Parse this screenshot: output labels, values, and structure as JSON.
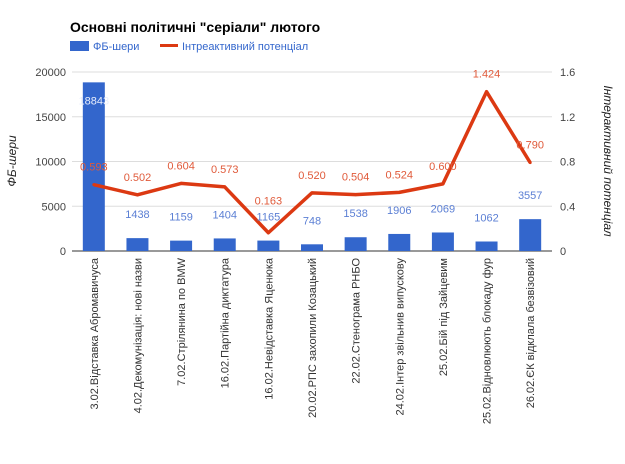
{
  "chart_data": {
    "type": "bar+line",
    "title": "Основні політичні \"серіали\" лютого",
    "categories": [
      "3.02.Відставка Абромавичуса",
      "4.02.Декомунізація: нові назви",
      "7.02.Стрілянина по BMW",
      "16.02.Партійна диктатура",
      "16.02.Невідставка Яценюка",
      "20.02.РПС захопили Козацький",
      "22.02.Стенограма РНБО",
      "24.02.Інтер звільнив випускову",
      "25.02.Бій під Зайцевим",
      "25.02.Відновлюють блокаду фур",
      "26.02.ЄК відклала безвізовий"
    ],
    "series": [
      {
        "name": "ФБ-шери",
        "type": "bar",
        "axis": "left",
        "color": "#3366cc",
        "values": [
          18843,
          1438,
          1159,
          1404,
          1165,
          748,
          1538,
          1906,
          2069,
          1062,
          3557
        ],
        "labels": [
          "18843",
          "1438",
          "1159",
          "1404",
          "1165",
          "748",
          "1538",
          "1906",
          "2069",
          "1062",
          "3557"
        ]
      },
      {
        "name": "Інтреактивний потенціал",
        "type": "line",
        "axis": "right",
        "color": "#dc3912",
        "values": [
          0.593,
          0.502,
          0.604,
          0.573,
          0.163,
          0.52,
          0.504,
          0.524,
          0.6,
          1.424,
          0.79
        ],
        "labels": [
          "0.593",
          "0.502",
          "0.604",
          "0.573",
          "0.163",
          "0.520",
          "0.504",
          "0.524",
          "0.600",
          "1.424",
          "0.790"
        ]
      }
    ],
    "ylabel": "ФБ-шери",
    "y2label": "Інтерактивний потенціал",
    "ylim": [
      0,
      20000
    ],
    "y2lim": [
      0,
      1.6
    ],
    "yticks": [
      "0",
      "5000",
      "10000",
      "15000",
      "20000"
    ],
    "y2ticks": [
      "0",
      "0.4",
      "0.8",
      "1.2",
      "1.6"
    ],
    "grid": true,
    "legend": "top-left"
  }
}
